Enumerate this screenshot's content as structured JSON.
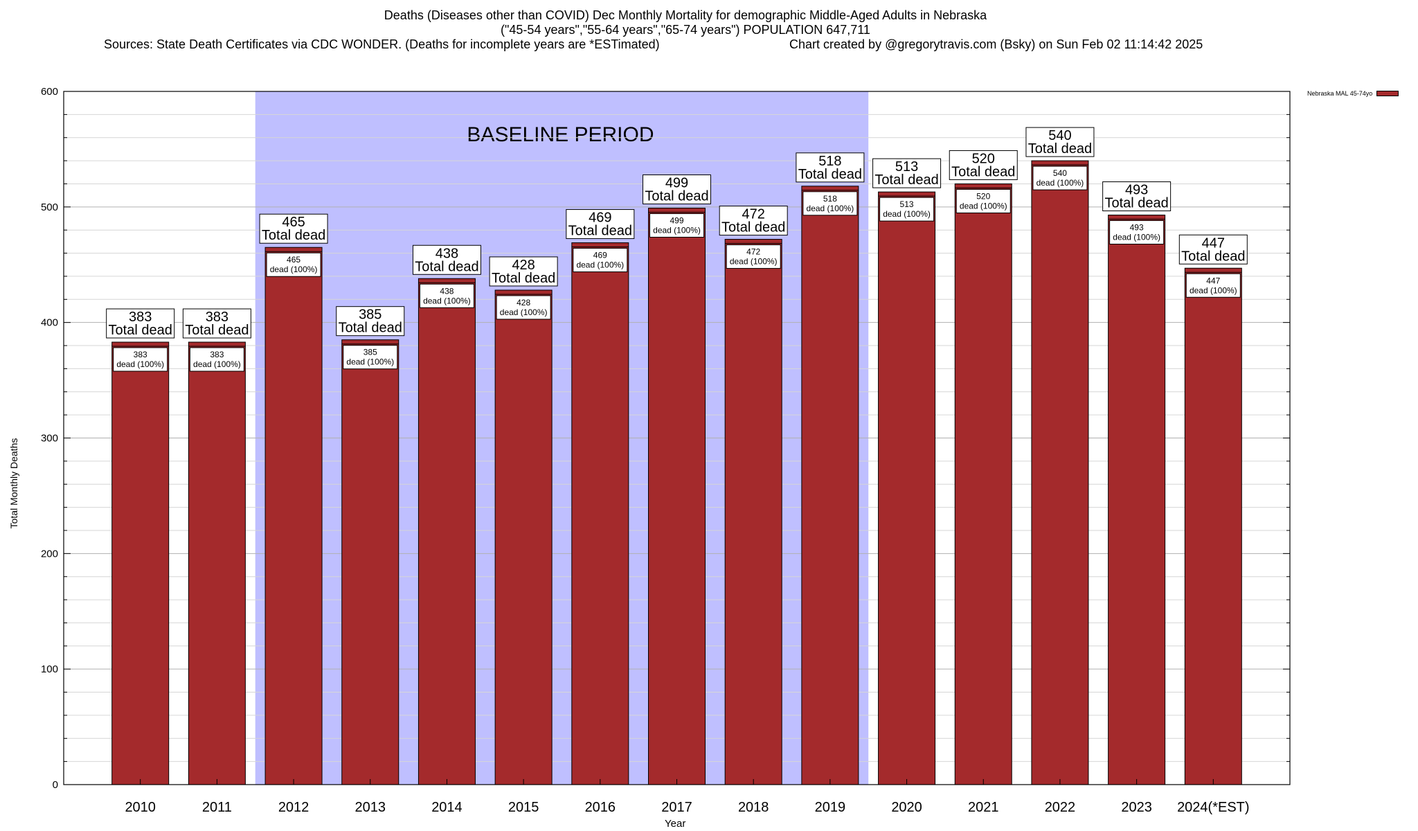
{
  "title": {
    "line1": "Deaths (Diseases other than COVID) Dec Monthly Mortality for demographic Middle-Aged Adults in Nebraska",
    "line2": "(\"45-54 years\",\"55-64 years\",\"65-74 years\") POPULATION 647,711",
    "sources": "Sources: State Death Certificates via CDC WONDER. (Deaths for incomplete years are *ESTimated)",
    "credit": "Chart created by @gregorytravis.com (Bsky) on Sun Feb 02 11:14:42 2025"
  },
  "chart_data": {
    "type": "bar",
    "title": "Deaths (Diseases other than COVID) Dec Monthly Mortality for demographic Middle-Aged Adults in Nebraska",
    "xlabel": "Year",
    "ylabel": "Total Monthly Deaths",
    "ylim": [
      0,
      600
    ],
    "yticks": [
      0,
      100,
      200,
      300,
      400,
      500,
      600
    ],
    "grid": true,
    "legend_position": "top-right",
    "categories": [
      "2010",
      "2011",
      "2012",
      "2013",
      "2014",
      "2015",
      "2016",
      "2017",
      "2018",
      "2019",
      "2020",
      "2021",
      "2022",
      "2023",
      "2024(*EST)"
    ],
    "series": [
      {
        "name": "Nebraska MAL 45-74yo",
        "color": "#a42a2c",
        "values": [
          383,
          383,
          465,
          385,
          438,
          428,
          469,
          499,
          472,
          518,
          513,
          520,
          540,
          493,
          447
        ]
      }
    ],
    "top_label_suffix": "Total dead",
    "inner_label_suffix": "dead (100%)",
    "shaded_region": {
      "label": "BASELINE PERIOD",
      "from_category": "2012",
      "to_category": "2019",
      "color": "#bfbfff"
    }
  }
}
